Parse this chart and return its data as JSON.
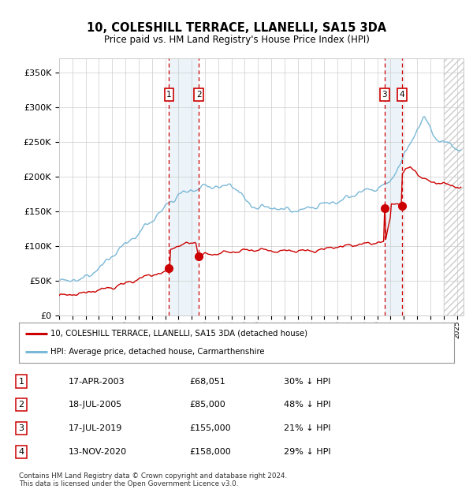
{
  "title": "10, COLESHILL TERRACE, LLANELLI, SA15 3DA",
  "subtitle": "Price paid vs. HM Land Registry's House Price Index (HPI)",
  "ytick_values": [
    0,
    50000,
    100000,
    150000,
    200000,
    250000,
    300000,
    350000
  ],
  "ylim": [
    0,
    370000
  ],
  "xlim_start": 1995.0,
  "xlim_end": 2025.5,
  "sale_dates": [
    2003.29,
    2005.54,
    2019.54,
    2020.87
  ],
  "sale_prices": [
    68051,
    85000,
    155000,
    158000
  ],
  "sale_labels": [
    "1",
    "2",
    "3",
    "4"
  ],
  "legend_line1": "10, COLESHILL TERRACE, LLANELLI, SA15 3DA (detached house)",
  "legend_line2": "HPI: Average price, detached house, Carmarthenshire",
  "table_data": [
    [
      "1",
      "17-APR-2003",
      "£68,051",
      "30% ↓ HPI"
    ],
    [
      "2",
      "18-JUL-2005",
      "£85,000",
      "48% ↓ HPI"
    ],
    [
      "3",
      "17-JUL-2019",
      "£155,000",
      "21% ↓ HPI"
    ],
    [
      "4",
      "13-NOV-2020",
      "£158,000",
      "29% ↓ HPI"
    ]
  ],
  "footnote": "Contains HM Land Registry data © Crown copyright and database right 2024.\nThis data is licensed under the Open Government Licence v3.0.",
  "hpi_color": "#7ab8d8",
  "price_color": "#cc0000",
  "shade_color": "#daeaf5",
  "grid_color": "#cccccc",
  "background_color": "#ffffff",
  "sale_box_color": "#cc0000"
}
